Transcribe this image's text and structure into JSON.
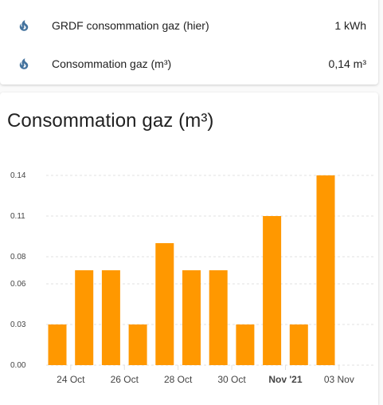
{
  "entities": [
    {
      "icon": "fire-icon",
      "name": "GRDF consommation gaz (hier)",
      "state": "1 kWh"
    },
    {
      "icon": "fire-icon",
      "name": "Consommation gaz (m³)",
      "state": "0,14 m³"
    }
  ],
  "colors": {
    "icon": "#44739e",
    "bar": "#ff9800",
    "grid": "#e0e0e0"
  },
  "chart": {
    "title": "Consommation gaz (m³)"
  },
  "chart_data": {
    "type": "bar",
    "title": "Consommation gaz (m³)",
    "x": [
      "2021-10-23",
      "2021-10-24",
      "2021-10-25",
      "2021-10-26",
      "2021-10-27",
      "2021-10-28",
      "2021-10-29",
      "2021-10-30",
      "2021-10-31",
      "2021-11-01",
      "2021-11-02"
    ],
    "values": [
      0.03,
      0.07,
      0.07,
      0.03,
      0.09,
      0.07,
      0.07,
      0.03,
      0.11,
      0.03,
      0.14
    ],
    "ylim": [
      0,
      0.14
    ],
    "y_ticks": [
      "0.00",
      "0.03",
      "0.06",
      "0.08",
      "0.11",
      "0.14"
    ],
    "x_tick_labels": [
      {
        "date": "2021-10-24",
        "label": "24 Oct"
      },
      {
        "date": "2021-10-26",
        "label": "26 Oct"
      },
      {
        "date": "2021-10-28",
        "label": "28 Oct"
      },
      {
        "date": "2021-10-30",
        "label": "30 Oct"
      },
      {
        "date": "2021-11-01",
        "label": "Nov '21",
        "bold": true
      },
      {
        "date": "2021-11-03",
        "label": "03 Nov"
      }
    ],
    "grid": true,
    "legend": "none"
  }
}
